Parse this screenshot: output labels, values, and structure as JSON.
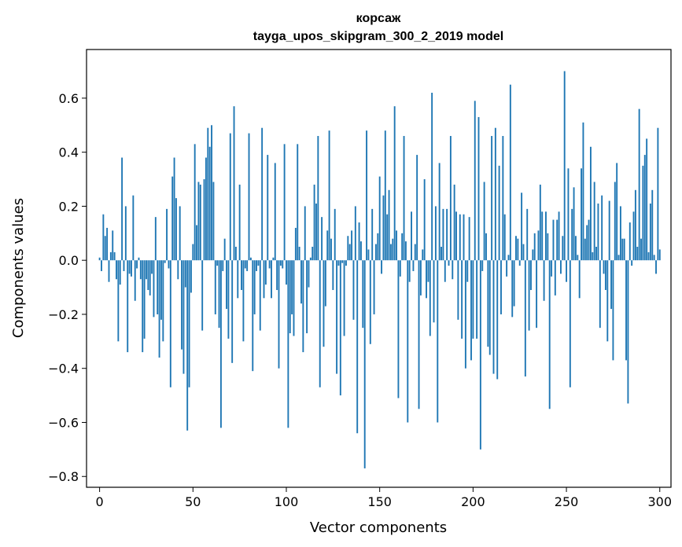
{
  "chart_data": {
    "type": "bar",
    "title": "корсаж",
    "subtitle": "tayga_upos_skipgram_300_2_2019 model",
    "xlabel": "Vector components",
    "ylabel": "Components values",
    "xlim": [
      -7,
      306
    ],
    "ylim": [
      -0.84,
      0.78
    ],
    "xticks": [
      0,
      50,
      100,
      150,
      200,
      250,
      300
    ],
    "yticks": [
      -0.8,
      -0.6,
      -0.4,
      -0.2,
      0.0,
      0.2,
      0.4,
      0.6
    ],
    "ytick_labels": [
      "−0.8",
      "−0.6",
      "−0.4",
      "−0.2",
      "0.0",
      "0.2",
      "0.4",
      "0.6"
    ],
    "bar_color": "#1f77b4",
    "values": [
      0.01,
      -0.04,
      0.17,
      0.09,
      0.12,
      -0.08,
      0.03,
      0.11,
      0.03,
      -0.07,
      -0.3,
      -0.09,
      0.38,
      -0.04,
      0.2,
      -0.34,
      -0.05,
      -0.06,
      0.24,
      -0.15,
      -0.03,
      0.01,
      -0.07,
      -0.34,
      -0.29,
      -0.07,
      -0.11,
      -0.13,
      -0.05,
      -0.21,
      0.16,
      -0.2,
      -0.36,
      -0.22,
      -0.3,
      -0.01,
      0.19,
      -0.03,
      -0.47,
      0.31,
      0.38,
      0.23,
      -0.07,
      0.2,
      -0.33,
      -0.42,
      -0.1,
      -0.63,
      -0.47,
      -0.12,
      0.06,
      0.43,
      0.13,
      0.29,
      0.28,
      -0.26,
      0.3,
      0.38,
      0.49,
      0.42,
      0.5,
      0.29,
      -0.2,
      -0.02,
      -0.25,
      -0.62,
      -0.04,
      0.08,
      -0.18,
      -0.29,
      0.47,
      -0.38,
      0.57,
      0.05,
      -0.14,
      0.28,
      -0.11,
      -0.3,
      -0.03,
      -0.04,
      0.47,
      0.01,
      -0.41,
      -0.2,
      -0.04,
      -0.02,
      -0.26,
      0.49,
      -0.14,
      -0.09,
      0.39,
      -0.03,
      -0.14,
      0.01,
      0.36,
      -0.11,
      -0.4,
      -0.02,
      -0.03,
      0.43,
      -0.09,
      -0.62,
      -0.27,
      -0.2,
      -0.28,
      0.12,
      0.43,
      0.05,
      -0.16,
      -0.34,
      0.2,
      -0.27,
      -0.1,
      0.01,
      0.05,
      0.28,
      0.21,
      0.46,
      -0.47,
      0.16,
      -0.32,
      -0.17,
      0.11,
      0.48,
      0.08,
      -0.11,
      0.19,
      -0.42,
      -0.02,
      -0.5,
      -0.01,
      -0.28,
      -0.02,
      0.09,
      0.06,
      0.11,
      -0.22,
      0.2,
      -0.64,
      0.14,
      0.07,
      -0.25,
      -0.77,
      0.48,
      0.04,
      -0.31,
      0.19,
      -0.2,
      0.06,
      0.1,
      0.31,
      -0.05,
      0.24,
      0.48,
      0.17,
      0.26,
      0.06,
      0.08,
      0.57,
      0.11,
      -0.51,
      -0.06,
      0.1,
      0.46,
      0.07,
      -0.6,
      -0.08,
      0.18,
      -0.04,
      0.06,
      0.39,
      -0.55,
      -0.13,
      0.04,
      0.3,
      -0.14,
      -0.08,
      -0.28,
      0.62,
      -0.23,
      0.2,
      -0.6,
      0.36,
      0.05,
      0.19,
      -0.08,
      0.19,
      -0.02,
      0.46,
      -0.07,
      0.28,
      0.18,
      -0.22,
      0.17,
      -0.29,
      0.17,
      -0.4,
      -0.08,
      0.16,
      -0.37,
      -0.29,
      0.59,
      -0.29,
      0.53,
      -0.7,
      -0.04,
      0.29,
      0.1,
      -0.32,
      -0.35,
      0.46,
      -0.42,
      0.49,
      -0.44,
      0.35,
      -0.2,
      0.46,
      0.17,
      -0.06,
      0.02,
      0.65,
      -0.21,
      -0.17,
      0.09,
      0.08,
      -0.02,
      0.25,
      0.06,
      -0.43,
      0.19,
      -0.26,
      -0.11,
      0.04,
      0.1,
      -0.25,
      0.11,
      0.28,
      0.18,
      -0.15,
      0.18,
      0.1,
      -0.55,
      -0.06,
      0.15,
      -0.13,
      0.15,
      0.18,
      -0.05,
      0.09,
      0.7,
      -0.08,
      0.34,
      -0.47,
      0.19,
      0.27,
      0.09,
      0.02,
      -0.14,
      0.34,
      0.51,
      0.08,
      0.13,
      0.15,
      0.42,
      0.03,
      0.29,
      0.05,
      0.21,
      -0.25,
      0.24,
      -0.05,
      -0.11,
      -0.3,
      0.22,
      -0.18,
      -0.37,
      0.29,
      0.36,
      0.02,
      0.2,
      0.08,
      0.08,
      -0.37,
      -0.53,
      0.14,
      -0.02,
      0.18,
      0.26,
      0.05,
      0.56,
      0.08,
      0.35,
      0.39,
      0.45,
      0.03,
      0.21,
      0.26,
      0.02,
      -0.05,
      0.49,
      0.04
    ]
  }
}
